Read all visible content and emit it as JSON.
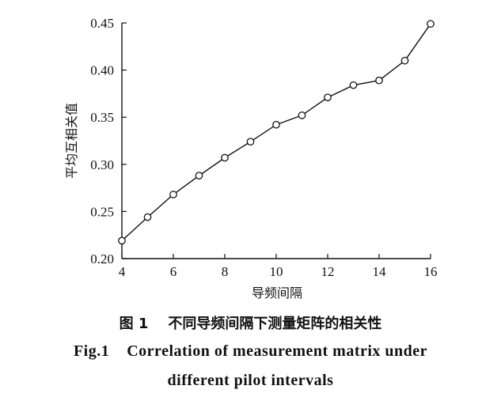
{
  "chart_data": {
    "type": "line",
    "xlabel": "导频间隔",
    "ylabel": "平均互相关值",
    "xlim": [
      4,
      16
    ],
    "ylim": [
      0.2,
      0.45
    ],
    "xticks": [
      4,
      6,
      8,
      10,
      12,
      14,
      16
    ],
    "yticks": [
      "0.20",
      "0.25",
      "0.30",
      "0.35",
      "0.40",
      "0.45"
    ],
    "grid": false,
    "marker": "open-circle",
    "series": [
      {
        "x": [
          4,
          5,
          6,
          7,
          8,
          9,
          10,
          11,
          12,
          13,
          14,
          15,
          16
        ],
        "values": [
          0.219,
          0.244,
          0.268,
          0.288,
          0.307,
          0.324,
          0.342,
          0.352,
          0.371,
          0.384,
          0.389,
          0.41,
          0.449
        ]
      }
    ]
  },
  "caption": {
    "cn": "图 1    不同导频间隔下测量矩阵的相关性",
    "en_line1": "Fig.1    Correlation of measurement matrix under",
    "en_line2": "different pilot intervals"
  }
}
